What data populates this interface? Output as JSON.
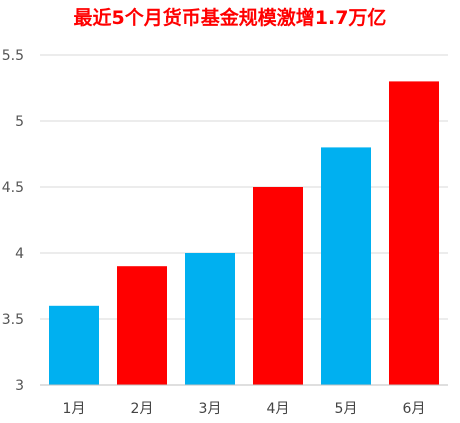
{
  "chart_data": {
    "type": "bar",
    "title": "最近5个月货币基金规模激增1.7万亿",
    "xlabel": "",
    "ylabel": "",
    "categories": [
      "1月",
      "2月",
      "3月",
      "4月",
      "5月",
      "6月"
    ],
    "values": [
      3.6,
      3.9,
      4.0,
      4.5,
      4.8,
      5.3
    ],
    "bar_colors": [
      "#00b0f0",
      "#ff0000",
      "#00b0f0",
      "#ff0000",
      "#00b0f0",
      "#ff0000"
    ],
    "ylim": [
      3,
      5.5
    ],
    "yticks": [
      3,
      3.5,
      4,
      4.5,
      5,
      5.5
    ],
    "ytick_labels": [
      "3",
      "3.5",
      "4",
      "4.5",
      "5",
      "5.5"
    ],
    "grid": true,
    "legend": "none"
  },
  "colors": {
    "title": "#ff0000",
    "gridline": "#d9d9d9",
    "axis": "#bfbfbf"
  }
}
